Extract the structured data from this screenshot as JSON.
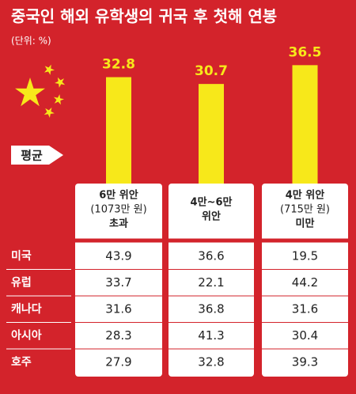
{
  "chart_data": {
    "type": "bar",
    "title": "중국인 해외 유학생의 귀국 후 첫해 연봉",
    "subtitle": "(단위: %)",
    "legend_label": "평균",
    "color": "#f7e81a",
    "categories": [
      [
        "6만 위안",
        "(1073만 원)",
        "초과"
      ],
      [
        "4만~6만",
        "위안"
      ],
      [
        "4만 위안",
        "(715만 원)",
        "미만"
      ]
    ],
    "values": [
      32.8,
      30.7,
      36.5
    ],
    "table": {
      "rows": [
        [
          "미국",
          43.9,
          36.6,
          19.5
        ],
        [
          "유럽",
          33.7,
          22.1,
          44.2
        ],
        [
          "캐나다",
          31.6,
          36.8,
          31.6
        ],
        [
          "아시아",
          28.3,
          41.3,
          30.4
        ],
        [
          "호주",
          27.9,
          32.8,
          39.3
        ]
      ]
    }
  }
}
